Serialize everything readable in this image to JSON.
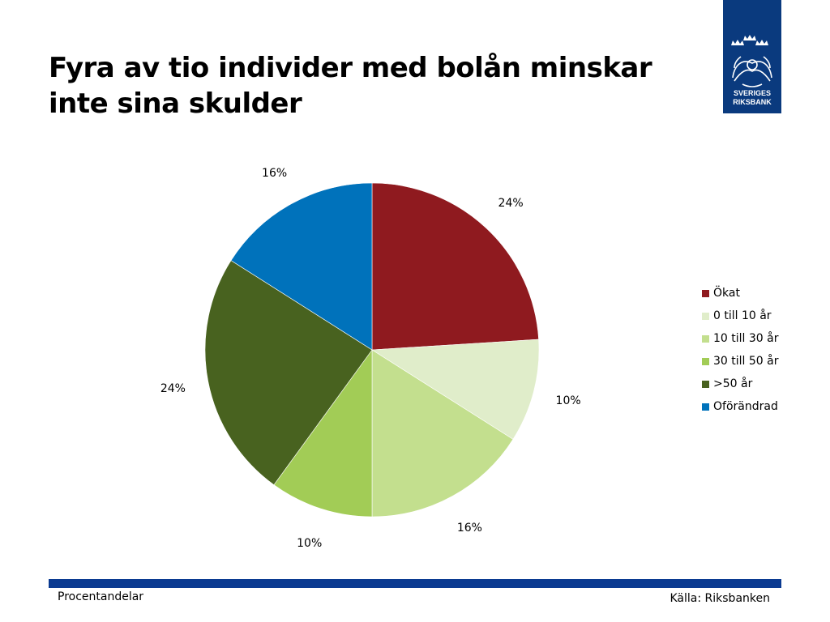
{
  "title_lines": [
    "Fyra av tio individer med bolån minskar",
    "inte sina skulder"
  ],
  "logo": {
    "line1": "SVERIGES",
    "line2": "RIKSBANK",
    "color": "#0a3a7e"
  },
  "chart_data": {
    "type": "pie",
    "title": "Fyra av tio individer med bolån minskar inte sina skulder",
    "start_angle_deg": 0,
    "direction": "clockwise",
    "legend_position": "right",
    "slices": [
      {
        "label": "Ökat",
        "value": 24,
        "data_label": "24%",
        "color": "#8f1a1f"
      },
      {
        "label": "0 till 10 år",
        "value": 10,
        "data_label": "10%",
        "color": "#e0edca"
      },
      {
        "label": "10 till 30 år",
        "value": 16,
        "data_label": "16%",
        "color": "#c3df8e"
      },
      {
        "label": "30 till 50 år",
        "value": 10,
        "data_label": "10%",
        "color": "#a2cc56"
      },
      {
        "label": ">50 år",
        "value": 24,
        "data_label": "24%",
        "color": "#48621f"
      },
      {
        "label": "Oförändrad",
        "value": 16,
        "data_label": "16%",
        "color": "#0072bb"
      }
    ]
  },
  "footer": {
    "left": "Procentandelar",
    "right": "Källa: Riksbanken",
    "rule_color": "#0a3a91"
  }
}
